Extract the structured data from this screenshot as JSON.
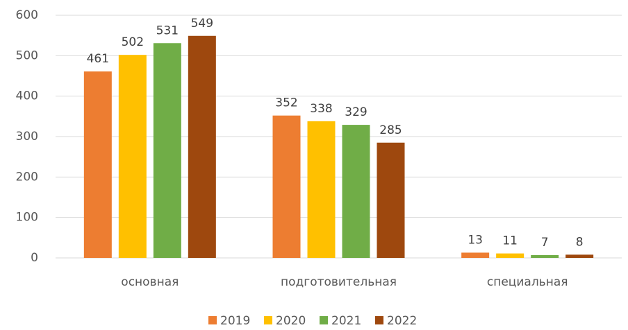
{
  "chart_data": {
    "type": "bar",
    "categories": [
      "основная",
      "подготовительная",
      "специальная"
    ],
    "series": [
      {
        "name": "2019",
        "color": "#ED7D31",
        "values": [
          461,
          352,
          13
        ]
      },
      {
        "name": "2020",
        "color": "#FFC000",
        "values": [
          502,
          338,
          11
        ]
      },
      {
        "name": "2021",
        "color": "#70AD47",
        "values": [
          531,
          329,
          7
        ]
      },
      {
        "name": "2022",
        "color": "#9E480E",
        "values": [
          549,
          285,
          8
        ]
      }
    ],
    "ylim": [
      0,
      600
    ],
    "yticks": [
      0,
      100,
      200,
      300,
      400,
      500,
      600
    ],
    "grid": true,
    "legend": "bottom"
  }
}
